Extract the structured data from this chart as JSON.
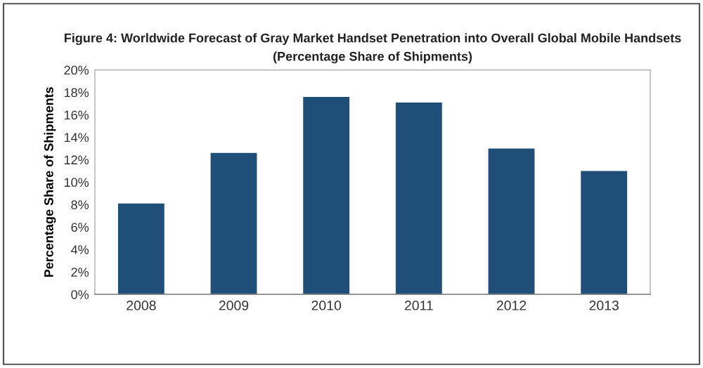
{
  "chart_data": {
    "type": "bar",
    "title": "Figure 4: Worldwide Forecast of Gray Market Handset Penetration into Overall Global Mobile Handsets",
    "subtitle": "(Percentage Share of Shipments)",
    "ylabel": "Percentage Share of Shipments",
    "categories": [
      "2008",
      "2009",
      "2010",
      "2011",
      "2012",
      "2013"
    ],
    "values": [
      8.1,
      12.6,
      17.6,
      17.1,
      13.0,
      11.0
    ],
    "color": "#1f4e79",
    "ylim": [
      0,
      20
    ],
    "yticks": [
      {
        "value": 0,
        "label": "0%"
      },
      {
        "value": 2,
        "label": "2%"
      },
      {
        "value": 4,
        "label": "4%"
      },
      {
        "value": 6,
        "label": "6%"
      },
      {
        "value": 8,
        "label": "8%"
      },
      {
        "value": 10,
        "label": "10%"
      },
      {
        "value": 12,
        "label": "12%"
      },
      {
        "value": 14,
        "label": "14%"
      },
      {
        "value": 16,
        "label": "16%"
      },
      {
        "value": 18,
        "label": "18%"
      },
      {
        "value": 20,
        "label": "20%"
      }
    ],
    "grid": false,
    "legend": false
  }
}
